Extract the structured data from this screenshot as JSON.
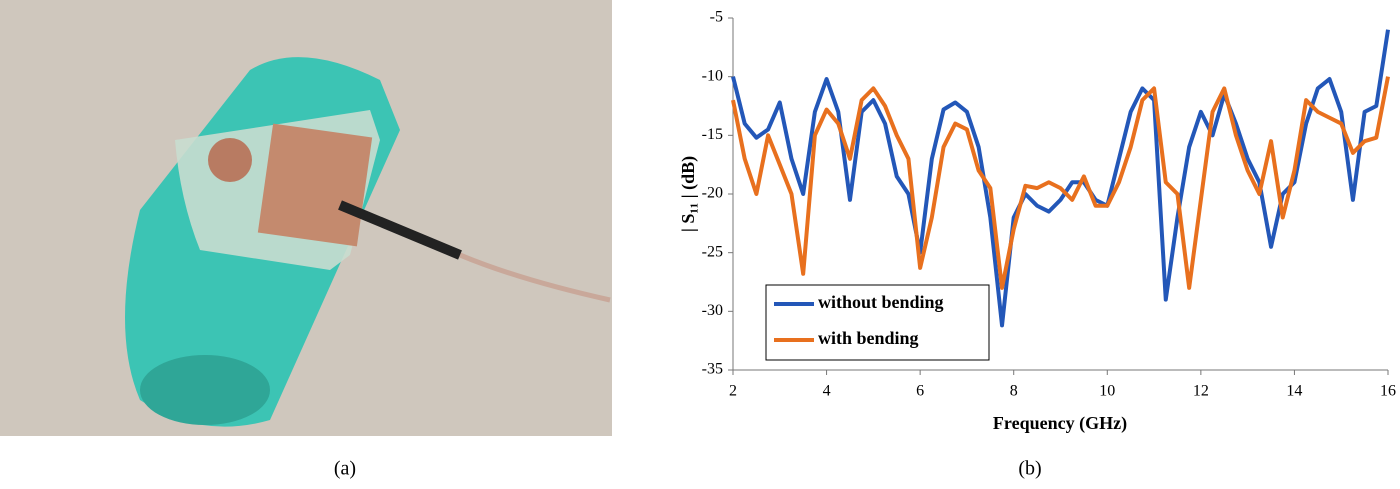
{
  "captions": [
    "(a)",
    "(b)"
  ],
  "chart_data": {
    "type": "line",
    "xlabel": "Frequency  (GHz)",
    "ylabel": "| S₁₁ | (dB)",
    "x": [
      2,
      2.25,
      2.5,
      2.75,
      3,
      3.25,
      3.5,
      3.75,
      4,
      4.25,
      4.5,
      4.75,
      5,
      5.25,
      5.5,
      5.75,
      6,
      6.25,
      6.5,
      6.75,
      7,
      7.25,
      7.5,
      7.75,
      8,
      8.25,
      8.5,
      8.75,
      9,
      9.25,
      9.5,
      9.75,
      10,
      10.25,
      10.5,
      10.75,
      11,
      11.25,
      11.5,
      11.75,
      12,
      12.25,
      12.5,
      12.75,
      13,
      13.25,
      13.5,
      13.75,
      14,
      14.25,
      14.5,
      14.75,
      15,
      15.25,
      15.5,
      15.75,
      16
    ],
    "series": [
      {
        "name": "without bending",
        "color": "#2357b8",
        "values": [
          -10,
          -14,
          -15.2,
          -14.5,
          -12.2,
          -17,
          -20,
          -13,
          -10.2,
          -13,
          -20.5,
          -13,
          -12,
          -14,
          -18.5,
          -20,
          -25,
          -17,
          -12.8,
          -12.2,
          -13,
          -16,
          -22,
          -31.2,
          -22,
          -20,
          -21,
          -21.5,
          -20.5,
          -19,
          -19,
          -20.5,
          -21,
          -17,
          -13,
          -11,
          -12,
          -29,
          -22,
          -16,
          -13,
          -15,
          -11.5,
          -14,
          -17,
          -19,
          -24.5,
          -20,
          -19,
          -14,
          -11,
          -10.2,
          -13,
          -20.5,
          -13,
          -12.5,
          -6
        ]
      },
      {
        "name": "with bending",
        "color": "#e8701e",
        "values": [
          -12,
          -17,
          -20,
          -15,
          -17.5,
          -20,
          -26.8,
          -15,
          -12.8,
          -14,
          -17,
          -12,
          -11,
          -12.5,
          -15,
          -17,
          -26.3,
          -22,
          -16,
          -14,
          -14.5,
          -18,
          -19.5,
          -28,
          -23,
          -19.3,
          -19.5,
          -19,
          -19.5,
          -20.5,
          -18.5,
          -21,
          -21,
          -19,
          -16,
          -12,
          -11,
          -19,
          -20,
          -28,
          -20.5,
          -13,
          -11,
          -15,
          -18,
          -20,
          -15.5,
          -22,
          -18,
          -12,
          -13,
          -13.5,
          -14,
          -16.5,
          -15.5,
          -15.2,
          -10
        ]
      }
    ],
    "xlim": [
      2,
      16
    ],
    "xticks": [
      2,
      4,
      6,
      8,
      10,
      12,
      14,
      16
    ],
    "ylim": [
      -35,
      -5
    ],
    "yticks": [
      -35,
      -30,
      -25,
      -20,
      -15,
      -10,
      -5
    ],
    "grid": false,
    "legend": "lower left"
  }
}
